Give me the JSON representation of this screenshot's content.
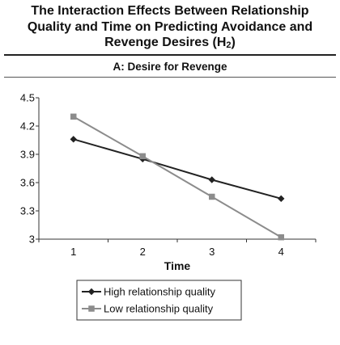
{
  "header": {
    "title_lines": [
      "The Interaction Effects Between Relationship",
      "Quality and Time on Predicting Avoidance and",
      "Revenge Desires (H"
    ],
    "title_sub": "2",
    "title_end": ")"
  },
  "chart_data": {
    "type": "line",
    "title": "A: Desire for Revenge",
    "xlabel": "Time",
    "ylabel": "",
    "x": [
      1,
      2,
      3,
      4
    ],
    "ylim": [
      3,
      4.5
    ],
    "yticks": [
      "3",
      "3.3",
      "3.6",
      "3.9",
      "4.2",
      "4.5"
    ],
    "xticks": [
      "1",
      "2",
      "3",
      "4"
    ],
    "grid": false,
    "legend_position": "bottom",
    "series": [
      {
        "name": "High relationship quality",
        "marker": "diamond",
        "color": "#222222",
        "values": [
          4.06,
          3.85,
          3.63,
          3.43
        ]
      },
      {
        "name": "Low relationship quality",
        "marker": "square",
        "color": "#8c8c8c",
        "values": [
          4.3,
          3.88,
          3.45,
          3.02
        ]
      }
    ]
  }
}
